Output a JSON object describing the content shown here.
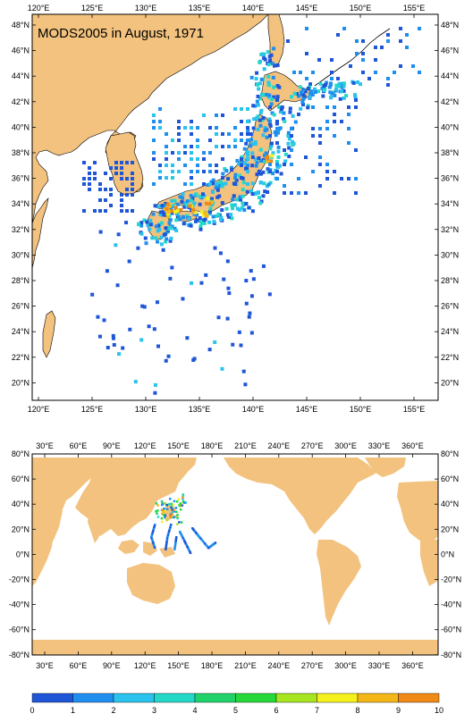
{
  "top_map": {
    "title": "MODS2005 in August, 1971",
    "lon_labels": [
      "120°E",
      "125°E",
      "130°E",
      "135°E",
      "140°E",
      "145°E",
      "150°E",
      "155°E"
    ],
    "lat_labels": [
      "48°N",
      "46°N",
      "44°N",
      "42°N",
      "40°N",
      "38°N",
      "36°N",
      "34°N",
      "32°N",
      "30°N",
      "28°N",
      "26°N",
      "24°N",
      "22°N",
      "20°N"
    ]
  },
  "bottom_map": {
    "lon_labels": [
      "30°E",
      "60°E",
      "90°E",
      "120°E",
      "150°E",
      "180°E",
      "210°E",
      "240°E",
      "270°E",
      "300°E",
      "330°E",
      "360°E"
    ],
    "lat_labels": [
      "80°N",
      "60°N",
      "40°N",
      "20°N",
      "0°N",
      "-20°N",
      "-40°N",
      "-60°N",
      "-80°N"
    ]
  },
  "colorbar": {
    "labels": [
      "0",
      "1",
      "2",
      "3",
      "4",
      "5",
      "6",
      "7",
      "8",
      "9",
      "10"
    ],
    "colors": [
      "#1f56d8",
      "#1f8fef",
      "#29c3ee",
      "#24d8c8",
      "#1fd36a",
      "#25d93a",
      "#a6e51f",
      "#f6f01c",
      "#f5b618",
      "#f08a17",
      "#e23c12"
    ]
  },
  "colors": {
    "land": "#f2c27e",
    "ocean": "#ffffff",
    "frame": "#000000"
  }
}
